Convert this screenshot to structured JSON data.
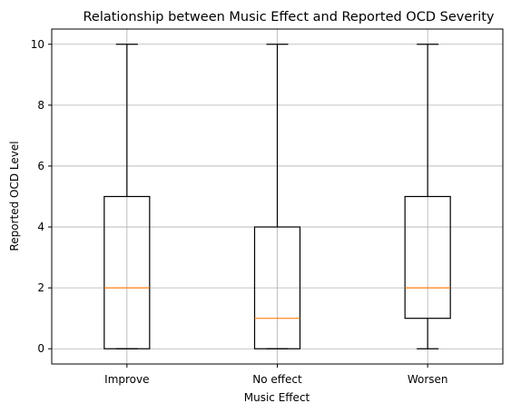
{
  "chart_data": {
    "type": "box",
    "title": "Relationship between Music Effect and Reported OCD Severity",
    "xlabel": "Music Effect",
    "ylabel": "Reported OCD Level",
    "categories": [
      "Improve",
      "No effect",
      "Worsen"
    ],
    "boxes": [
      {
        "category": "Improve",
        "whisker_low": 0,
        "q1": 0,
        "median": 2,
        "q3": 5,
        "whisker_high": 10
      },
      {
        "category": "No effect",
        "whisker_low": 0,
        "q1": 0,
        "median": 1,
        "q3": 4,
        "whisker_high": 10
      },
      {
        "category": "Worsen",
        "whisker_low": 0,
        "q1": 1,
        "median": 2,
        "q3": 5,
        "whisker_high": 10
      }
    ],
    "ylim": [
      -0.5,
      10.5
    ],
    "yticks": [
      0,
      2,
      4,
      6,
      8,
      10
    ],
    "grid": true,
    "colors": {
      "box": "#000000",
      "median": "#ff7f0e",
      "grid": "#b0b0b0"
    }
  }
}
